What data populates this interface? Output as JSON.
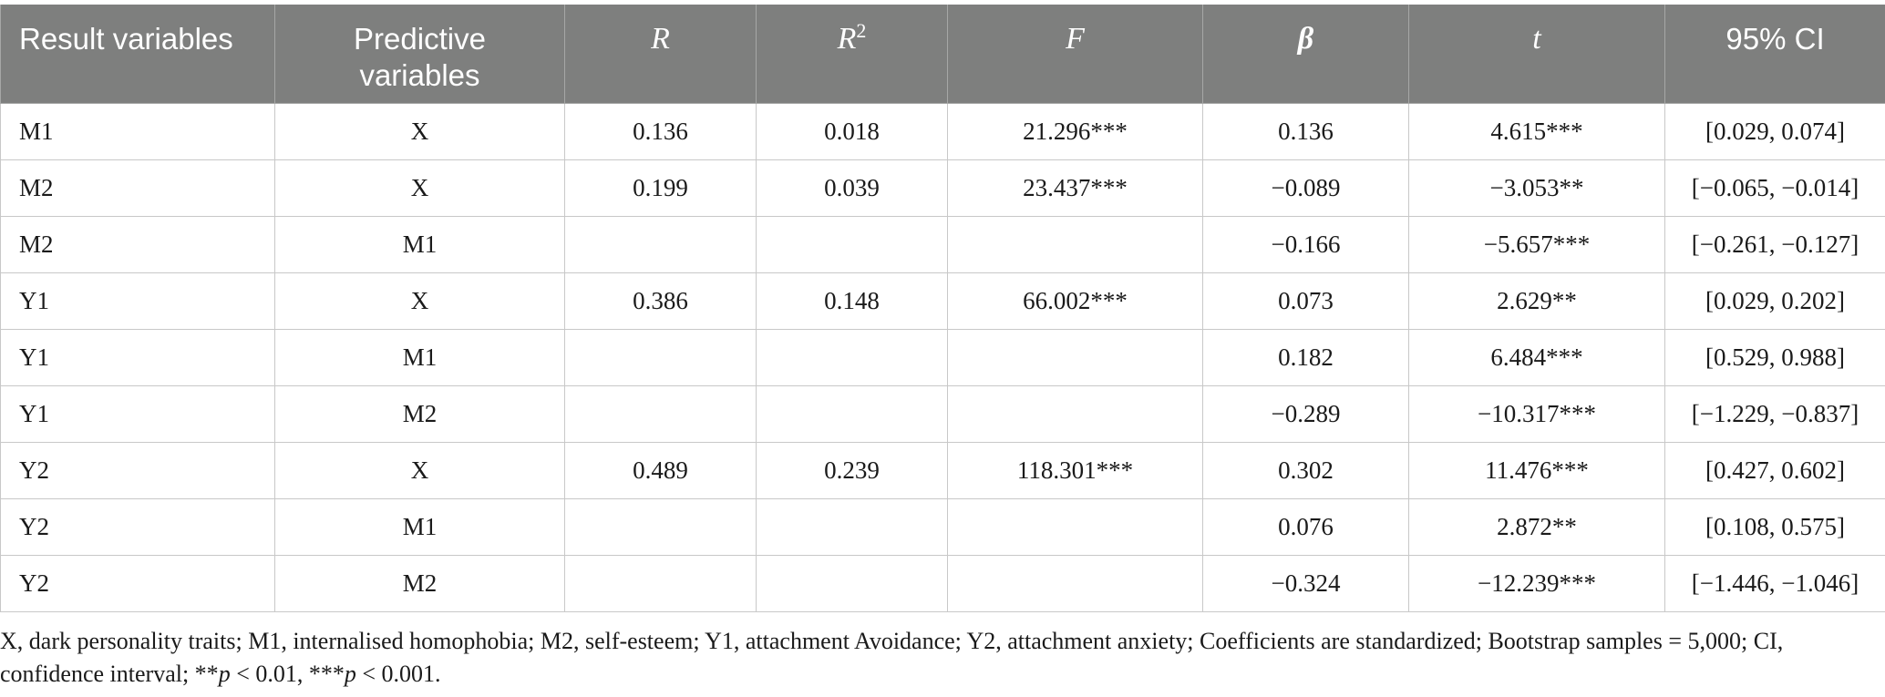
{
  "table": {
    "headers": {
      "result": "Result variables",
      "predictive": "Predictive variables",
      "r": "R",
      "r2_base": "R",
      "r2_sup": "2",
      "f": "F",
      "beta": "β",
      "t": "t",
      "ci": "95% CI"
    },
    "rows": [
      {
        "result": "M1",
        "predictive": "X",
        "r": "0.136",
        "r2": "0.018",
        "f": "21.296***",
        "beta": "0.136",
        "t": "4.615***",
        "ci": "[0.029, 0.074]"
      },
      {
        "result": "M2",
        "predictive": "X",
        "r": "0.199",
        "r2": "0.039",
        "f": "23.437***",
        "beta": "−0.089",
        "t": "−3.053**",
        "ci": "[−0.065, −0.014]"
      },
      {
        "result": "M2",
        "predictive": "M1",
        "r": "",
        "r2": "",
        "f": "",
        "beta": "−0.166",
        "t": "−5.657***",
        "ci": "[−0.261, −0.127]"
      },
      {
        "result": "Y1",
        "predictive": "X",
        "r": "0.386",
        "r2": "0.148",
        "f": "66.002***",
        "beta": "0.073",
        "t": "2.629**",
        "ci": "[0.029, 0.202]"
      },
      {
        "result": "Y1",
        "predictive": "M1",
        "r": "",
        "r2": "",
        "f": "",
        "beta": "0.182",
        "t": "6.484***",
        "ci": "[0.529, 0.988]"
      },
      {
        "result": "Y1",
        "predictive": "M2",
        "r": "",
        "r2": "",
        "f": "",
        "beta": "−0.289",
        "t": "−10.317***",
        "ci": "[−1.229, −0.837]"
      },
      {
        "result": "Y2",
        "predictive": "X",
        "r": "0.489",
        "r2": "0.239",
        "f": "118.301***",
        "beta": "0.302",
        "t": "11.476***",
        "ci": "[0.427, 0.602]"
      },
      {
        "result": "Y2",
        "predictive": "M1",
        "r": "",
        "r2": "",
        "f": "",
        "beta": "0.076",
        "t": "2.872**",
        "ci": "[0.108, 0.575]"
      },
      {
        "result": "Y2",
        "predictive": "M2",
        "r": "",
        "r2": "",
        "f": "",
        "beta": "−0.324",
        "t": "−12.239***",
        "ci": "[−1.446, −1.046]"
      }
    ]
  },
  "footnote": {
    "text_1": "X, dark personality traits; M1, internalised homophobia; M2, self-esteem; Y1, attachment Avoidance; Y2, attachment anxiety; Coefficients are standardized; Bootstrap samples = 5,000; CI, confidence interval; **",
    "p_1": "p",
    "text_2": " < 0.01, ***",
    "p_2": "p",
    "text_3": " < 0.001."
  },
  "colors": {
    "header_bg": "#7e7f7e",
    "header_text": "#ffffff",
    "grid": "#c8c8c8"
  }
}
